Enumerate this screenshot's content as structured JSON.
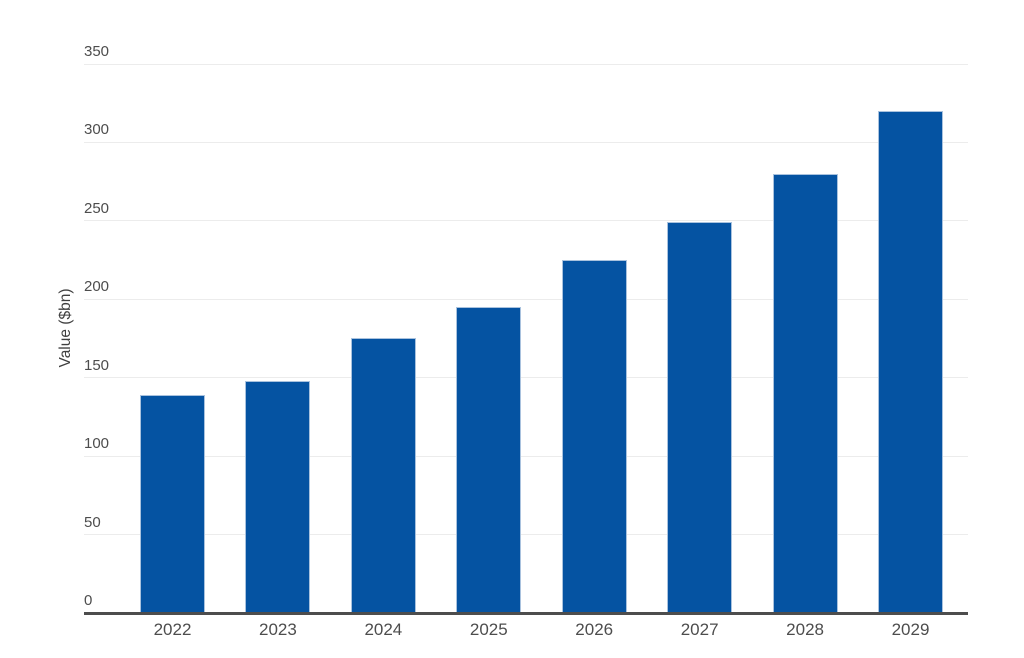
{
  "chart_data": {
    "type": "bar",
    "title": "",
    "categories": [
      "2022",
      "2023",
      "2024",
      "2025",
      "2026",
      "2027",
      "2028",
      "2029"
    ],
    "values": [
      139,
      148,
      175,
      195,
      225,
      249,
      280,
      320
    ],
    "xlabel": "",
    "ylabel": "Value ($bn)",
    "ylim": [
      0,
      350
    ],
    "yticks": [
      0,
      50,
      100,
      150,
      200,
      250,
      300,
      350
    ],
    "grid": "horizontal",
    "legend": "none",
    "bar_color": "#0553a2",
    "axis_color": "#4d4d4d",
    "gridline_color": "#ececec",
    "tick_label_color": "#4d4d4d"
  }
}
